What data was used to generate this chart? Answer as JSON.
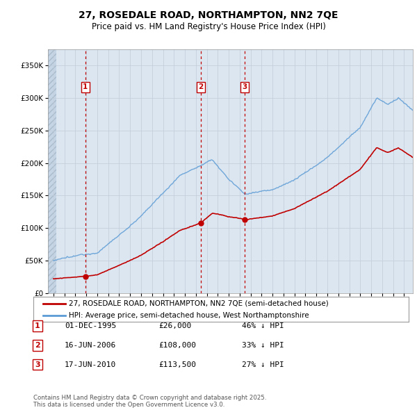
{
  "title": "27, ROSEDALE ROAD, NORTHAMPTON, NN2 7QE",
  "subtitle": "Price paid vs. HM Land Registry's House Price Index (HPI)",
  "property_label": "27, ROSEDALE ROAD, NORTHAMPTON, NN2 7QE (semi-detached house)",
  "hpi_label": "HPI: Average price, semi-detached house, West Northamptonshire",
  "footer": "Contains HM Land Registry data © Crown copyright and database right 2025.\nThis data is licensed under the Open Government Licence v3.0.",
  "transactions": [
    {
      "num": 1,
      "date": "01-DEC-1995",
      "price": 26000,
      "pct": "46% ↓ HPI",
      "x_year": 1995.917
    },
    {
      "num": 2,
      "date": "16-JUN-2006",
      "price": 108000,
      "pct": "33% ↓ HPI",
      "x_year": 2006.458
    },
    {
      "num": 3,
      "date": "17-JUN-2010",
      "price": 113500,
      "pct": "27% ↓ HPI",
      "x_year": 2010.458
    }
  ],
  "hpi_color": "#5b9bd5",
  "property_color": "#c00000",
  "background_color": "#dce6f0",
  "ylim": [
    0,
    375000
  ],
  "yticks": [
    0,
    50000,
    100000,
    150000,
    200000,
    250000,
    300000,
    350000
  ],
  "xlim_start": 1992.5,
  "xlim_end": 2025.8,
  "xticks": [
    1993,
    1994,
    1995,
    1996,
    1997,
    1998,
    1999,
    2000,
    2001,
    2002,
    2003,
    2004,
    2005,
    2006,
    2007,
    2008,
    2009,
    2010,
    2011,
    2012,
    2013,
    2014,
    2015,
    2016,
    2017,
    2018,
    2019,
    2020,
    2021,
    2022,
    2023,
    2024,
    2025
  ]
}
